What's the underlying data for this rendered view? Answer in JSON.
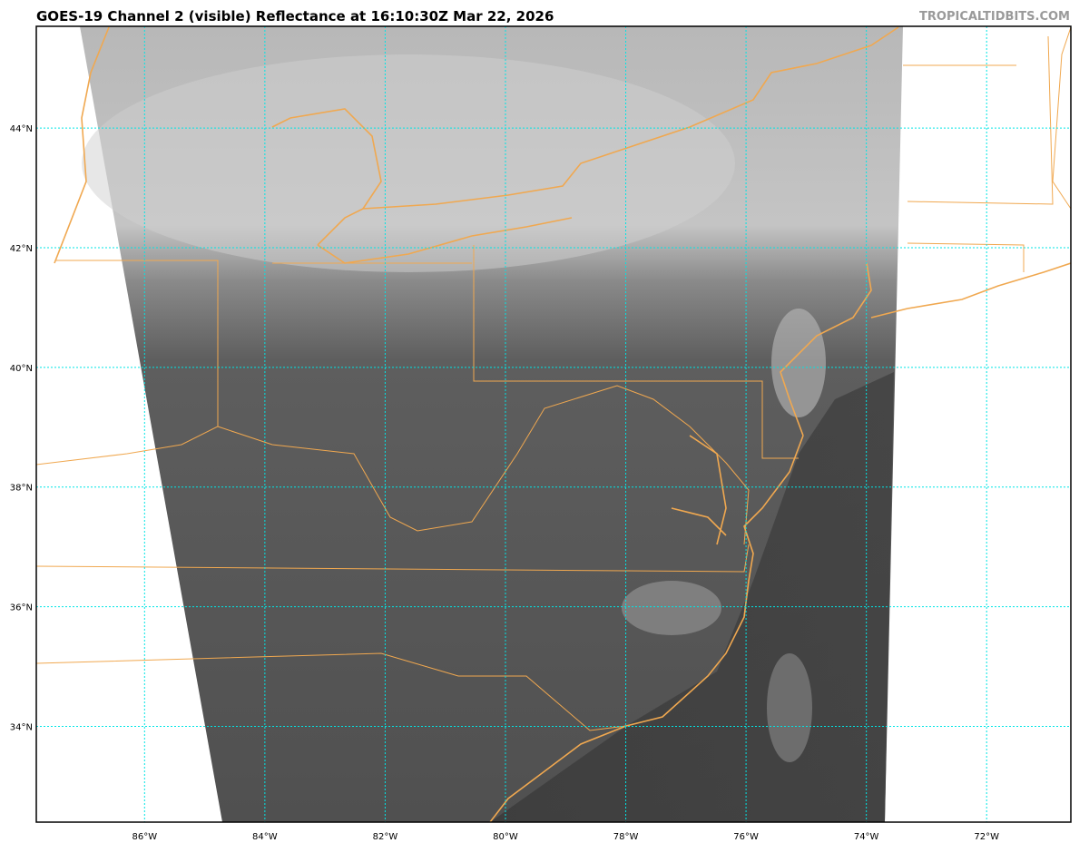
{
  "title": "GOES-19 Channel 2 (visible) Reflectance at 16:10:30Z Mar 22, 2026",
  "watermark": "TROPICALTIDBITS.COM",
  "map": {
    "lon_range": [
      -87.8,
      -70.6
    ],
    "lat_range": [
      32.4,
      45.7
    ],
    "gridline_color": "#00e5e5",
    "border_color": "#f0a850",
    "latitudes": [
      {
        "value": 44,
        "label": "44°N"
      },
      {
        "value": 42,
        "label": "42°N"
      },
      {
        "value": 40,
        "label": "40°N"
      },
      {
        "value": 38,
        "label": "38°N"
      },
      {
        "value": 36,
        "label": "36°N"
      },
      {
        "value": 34,
        "label": "34°N"
      }
    ],
    "longitudes": [
      {
        "value": -86,
        "label": "86°W"
      },
      {
        "value": -84,
        "label": "84°W"
      },
      {
        "value": -82,
        "label": "82°W"
      },
      {
        "value": -80,
        "label": "80°W"
      },
      {
        "value": -78,
        "label": "78°W"
      },
      {
        "value": -76,
        "label": "76°W"
      },
      {
        "value": -74,
        "label": "74°W"
      },
      {
        "value": -72,
        "label": "72°W"
      }
    ]
  }
}
